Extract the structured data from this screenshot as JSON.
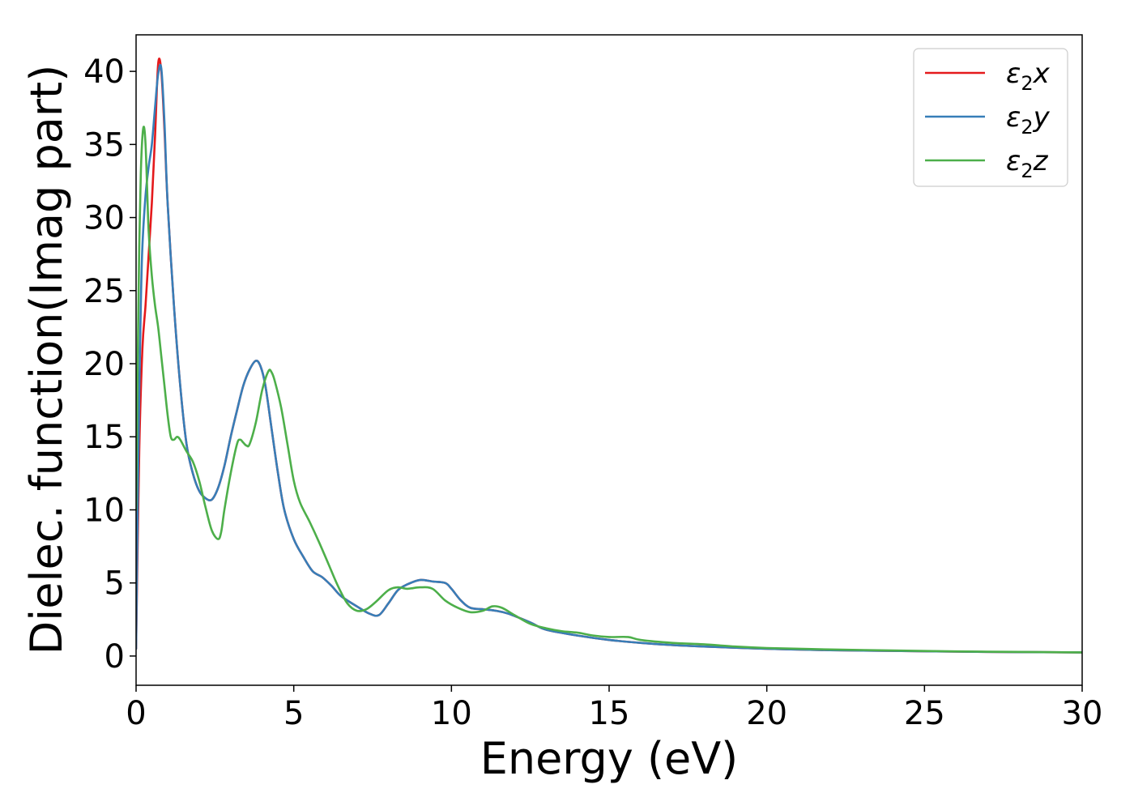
{
  "chart_data": {
    "type": "line",
    "xlabel": "Energy (eV)",
    "ylabel": "Dielec. function(Imag part)",
    "xlim": [
      0,
      30
    ],
    "ylim": [
      -2,
      42.5
    ],
    "xticks": [
      0,
      5,
      10,
      15,
      20,
      25,
      30
    ],
    "yticks": [
      0,
      5,
      10,
      15,
      20,
      25,
      30,
      35,
      40
    ],
    "grid": false,
    "legend_position": "top-right",
    "series": [
      {
        "name": "ε₂x",
        "legend": {
          "base": "ε",
          "sub": "2",
          "axis": "x"
        },
        "color": "#e41a1c",
        "x": [
          0,
          0.1,
          0.2,
          0.3,
          0.4,
          0.5,
          0.6,
          0.7,
          0.8,
          0.9,
          1.0,
          1.2,
          1.4,
          1.6,
          1.8,
          2.0,
          2.2,
          2.4,
          2.6,
          2.8,
          3.0,
          3.2,
          3.4,
          3.6,
          3.8,
          3.95,
          4.1,
          4.3,
          4.5,
          4.7,
          5.0,
          5.3,
          5.6,
          5.9,
          6.2,
          6.5,
          7.0,
          7.4,
          7.7,
          8.0,
          8.3,
          8.6,
          9.0,
          9.4,
          9.8,
          10.0,
          10.3,
          10.6,
          11.0,
          11.4,
          11.8,
          12.5,
          13.0,
          14.0,
          15.0,
          16.0,
          17.0,
          18.0,
          20.0,
          22.0,
          24.0,
          26.0,
          28.0,
          30.0
        ],
        "y": [
          0.5,
          14,
          21,
          24,
          27.5,
          31,
          35.5,
          40.5,
          40,
          36,
          31,
          24,
          18.5,
          14.5,
          12.5,
          11.3,
          10.8,
          10.7,
          11.5,
          13,
          15,
          16.8,
          18.5,
          19.6,
          20.2,
          19.8,
          18.5,
          15.5,
          12.5,
          10,
          8,
          6.8,
          5.8,
          5.4,
          4.8,
          4.1,
          3.4,
          2.9,
          2.8,
          3.6,
          4.5,
          4.9,
          5.2,
          5.1,
          5.0,
          4.6,
          3.8,
          3.3,
          3.2,
          3.1,
          2.9,
          2.3,
          1.8,
          1.4,
          1.1,
          0.9,
          0.75,
          0.65,
          0.5,
          0.4,
          0.35,
          0.3,
          0.27,
          0.25
        ]
      },
      {
        "name": "ε₂y",
        "legend": {
          "base": "ε",
          "sub": "2",
          "axis": "y"
        },
        "color": "#377eb8",
        "x": [
          0,
          0.05,
          0.1,
          0.15,
          0.2,
          0.3,
          0.4,
          0.5,
          0.6,
          0.7,
          0.8,
          0.9,
          1.0,
          1.2,
          1.4,
          1.6,
          1.8,
          2.0,
          2.2,
          2.4,
          2.6,
          2.8,
          3.0,
          3.2,
          3.4,
          3.6,
          3.8,
          3.95,
          4.1,
          4.3,
          4.5,
          4.7,
          5.0,
          5.3,
          5.6,
          5.9,
          6.2,
          6.5,
          7.0,
          7.4,
          7.7,
          8.0,
          8.3,
          8.6,
          9.0,
          9.4,
          9.8,
          10.0,
          10.3,
          10.6,
          11.0,
          11.4,
          11.8,
          12.5,
          13.0,
          14.0,
          15.0,
          16.0,
          17.0,
          18.0,
          20.0,
          22.0,
          24.0,
          26.0,
          28.0,
          30.0
        ],
        "y": [
          0.5,
          10,
          18,
          24,
          28,
          31.5,
          33.5,
          35,
          37.5,
          39.8,
          40.2,
          36.5,
          31,
          24,
          18.5,
          14.5,
          12.5,
          11.3,
          10.8,
          10.7,
          11.5,
          13,
          15,
          16.8,
          18.5,
          19.6,
          20.2,
          19.8,
          18.5,
          15.5,
          12.5,
          10,
          8,
          6.8,
          5.8,
          5.4,
          4.8,
          4.1,
          3.4,
          2.9,
          2.8,
          3.6,
          4.5,
          4.9,
          5.2,
          5.1,
          5.0,
          4.6,
          3.8,
          3.3,
          3.2,
          3.1,
          2.9,
          2.3,
          1.8,
          1.4,
          1.1,
          0.9,
          0.75,
          0.65,
          0.5,
          0.4,
          0.35,
          0.3,
          0.27,
          0.25
        ]
      },
      {
        "name": "ε₂z",
        "legend": {
          "base": "ε",
          "sub": "2",
          "axis": "z"
        },
        "color": "#4daf4a",
        "x": [
          0,
          0.05,
          0.1,
          0.15,
          0.2,
          0.25,
          0.3,
          0.35,
          0.4,
          0.5,
          0.6,
          0.7,
          0.8,
          0.9,
          1.0,
          1.1,
          1.2,
          1.3,
          1.4,
          1.6,
          1.8,
          2.0,
          2.2,
          2.4,
          2.6,
          2.7,
          2.8,
          3.0,
          3.2,
          3.3,
          3.4,
          3.5,
          3.6,
          3.8,
          4.0,
          4.2,
          4.3,
          4.4,
          4.6,
          4.8,
          5.0,
          5.2,
          5.5,
          5.8,
          6.1,
          6.4,
          6.7,
          7.0,
          7.3,
          7.6,
          8.0,
          8.3,
          8.6,
          9.0,
          9.4,
          9.8,
          10.2,
          10.6,
          11.0,
          11.3,
          11.6,
          12.0,
          12.5,
          13.0,
          13.5,
          14.0,
          14.5,
          15.0,
          15.6,
          16.0,
          17.0,
          18.0,
          19.0,
          20.0,
          22.0,
          24.0,
          26.0,
          28.0,
          30.0
        ],
        "y": [
          10,
          20,
          28,
          33,
          35.5,
          36.2,
          35,
          32,
          29,
          26,
          24,
          22.5,
          20.5,
          18.5,
          16.5,
          15,
          14.8,
          15,
          14.8,
          14,
          13.3,
          12,
          10.2,
          8.6,
          8,
          8.5,
          10,
          12.5,
          14.5,
          14.8,
          14.6,
          14.4,
          14.5,
          16,
          18.2,
          19.5,
          19.4,
          18.8,
          17,
          14.5,
          12,
          10.5,
          9.2,
          7.8,
          6.3,
          4.8,
          3.6,
          3.1,
          3.2,
          3.7,
          4.5,
          4.7,
          4.6,
          4.7,
          4.6,
          3.8,
          3.3,
          3.0,
          3.1,
          3.4,
          3.3,
          2.8,
          2.2,
          1.9,
          1.7,
          1.6,
          1.4,
          1.3,
          1.3,
          1.1,
          0.9,
          0.8,
          0.65,
          0.55,
          0.45,
          0.38,
          0.32,
          0.28,
          0.25
        ]
      }
    ]
  }
}
